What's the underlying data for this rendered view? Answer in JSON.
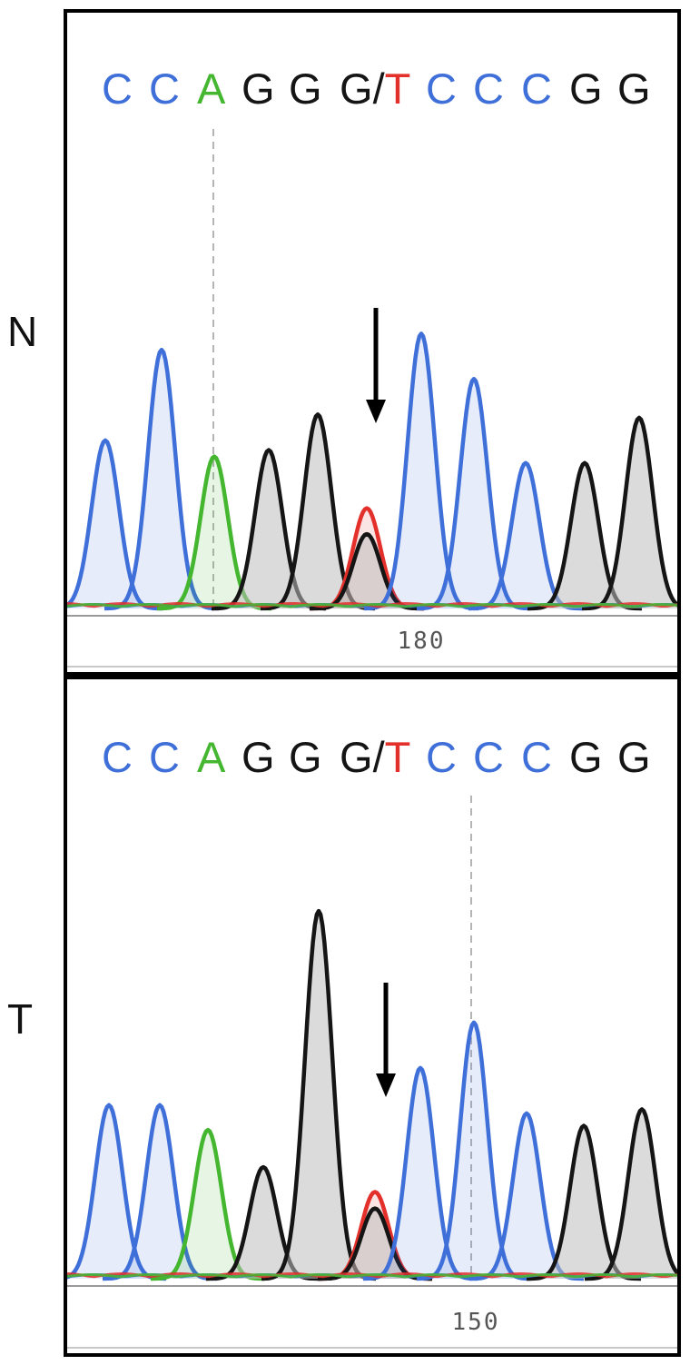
{
  "colors": {
    "A": "#44b62f",
    "C": "#3f6fd8",
    "G": "#151515",
    "T": "#e3302b"
  },
  "chart_data": [
    {
      "type": "line",
      "panel_label": "N",
      "sequence": [
        "C",
        "C",
        "A",
        "G",
        "G",
        "G/T",
        "C",
        "C",
        "C",
        "G",
        "G"
      ],
      "position_tick": "180",
      "peaks": [
        {
          "base": "C",
          "height": 0.52
        },
        {
          "base": "C",
          "height": 0.8
        },
        {
          "base": "A",
          "height": 0.47
        },
        {
          "base": "G",
          "height": 0.49
        },
        {
          "base": "G",
          "height": 0.6
        },
        {
          "base": "T",
          "height": 0.31
        },
        {
          "base": "G",
          "height": 0.23
        },
        {
          "base": "C",
          "height": 0.85
        },
        {
          "base": "C",
          "height": 0.71
        },
        {
          "base": "C",
          "height": 0.45
        },
        {
          "base": "G",
          "height": 0.45
        },
        {
          "base": "G",
          "height": 0.59
        }
      ]
    },
    {
      "type": "line",
      "panel_label": "T",
      "sequence": [
        "C",
        "C",
        "A",
        "G",
        "G",
        "G/T",
        "C",
        "C",
        "C",
        "G",
        "G"
      ],
      "position_tick": "150",
      "peaks": [
        {
          "base": "C",
          "height": 0.42
        },
        {
          "base": "C",
          "height": 0.42
        },
        {
          "base": "A",
          "height": 0.36
        },
        {
          "base": "G",
          "height": 0.27
        },
        {
          "base": "G",
          "height": 0.89
        },
        {
          "base": "T",
          "height": 0.21
        },
        {
          "base": "G",
          "height": 0.17
        },
        {
          "base": "C",
          "height": 0.51
        },
        {
          "base": "C",
          "height": 0.62
        },
        {
          "base": "C",
          "height": 0.4
        },
        {
          "base": "G",
          "height": 0.37
        },
        {
          "base": "G",
          "height": 0.41
        }
      ]
    }
  ]
}
